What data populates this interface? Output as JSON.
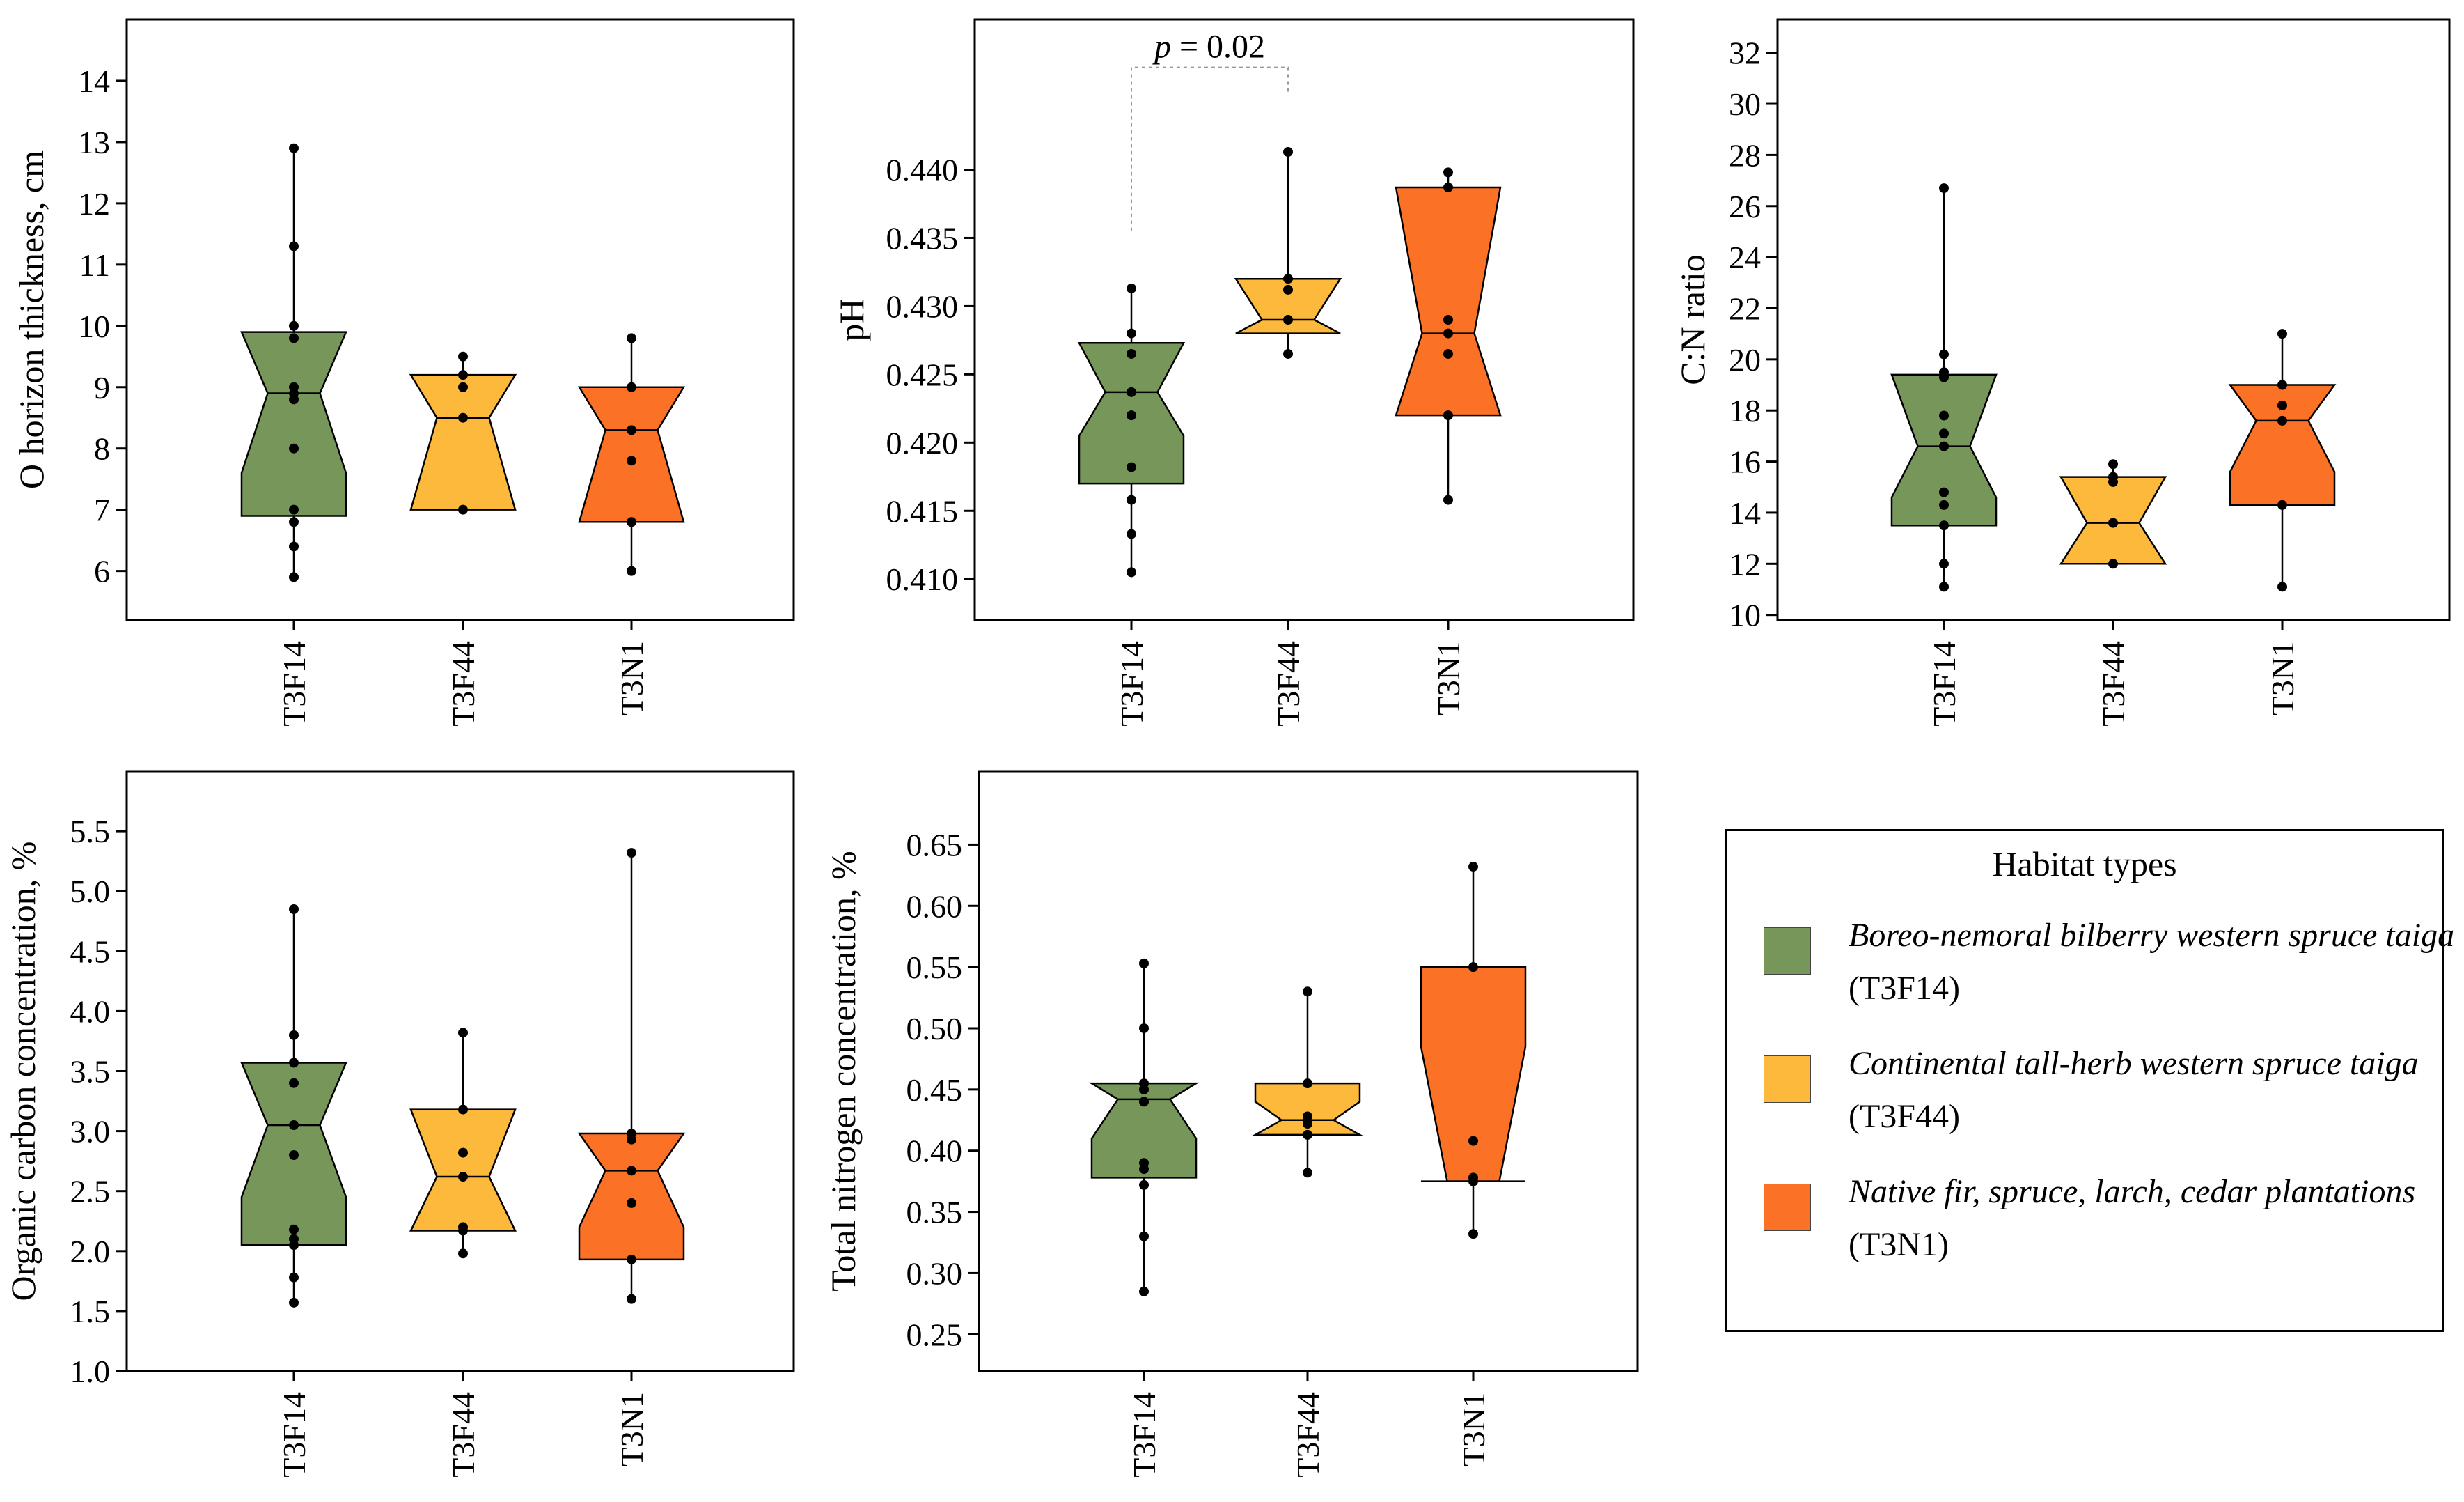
{
  "colors": {
    "T3F14": "#77975a",
    "T3F44": "#fdb93c",
    "T3N1": "#fb7226"
  },
  "legend": {
    "title": "Habitat types",
    "items": [
      {
        "code": "T3F14",
        "name": "Boreo-nemoral bilberry western spruce taiga",
        "code_label": "(T3F14)"
      },
      {
        "code": "T3F44",
        "name": "Continental tall-herb western spruce taiga",
        "code_label": "(T3F44)"
      },
      {
        "code": "T3N1",
        "name": "Native fir, spruce, larch, cedar plantations",
        "code_label": "(T3N1)"
      }
    ]
  },
  "chart_data": [
    {
      "id": "o-horizon",
      "type": "boxplot",
      "ylabel": "O horizon thickness, cm",
      "ylim": [
        5.2,
        15.0
      ],
      "yticks": [
        6,
        7,
        8,
        9,
        10,
        11,
        12,
        13,
        14
      ],
      "categories": [
        "T3F14",
        "T3F44",
        "T3N1"
      ],
      "boxes": [
        {
          "min": 5.9,
          "q1": 6.9,
          "median": 8.9,
          "q3": 9.9,
          "max": 12.9,
          "notch_lo": 7.6,
          "notch_hi": 9.9,
          "points": [
            5.9,
            6.4,
            6.8,
            7.0,
            8.0,
            8.8,
            8.9,
            9.0,
            9.8,
            10.0,
            11.3,
            12.9
          ]
        },
        {
          "min": 7.0,
          "q1": 7.0,
          "median": 8.5,
          "q3": 9.2,
          "max": 9.5,
          "notch_lo": 7.0,
          "notch_hi": 9.2,
          "points": [
            7.0,
            8.5,
            9.0,
            9.2,
            9.5
          ]
        },
        {
          "min": 6.0,
          "q1": 6.8,
          "median": 8.3,
          "q3": 9.0,
          "max": 9.8,
          "notch_lo": 6.8,
          "notch_hi": 9.0,
          "points": [
            6.0,
            6.8,
            7.8,
            8.3,
            9.0,
            9.8
          ]
        }
      ]
    },
    {
      "id": "ph",
      "type": "boxplot",
      "ylabel": "pH",
      "ylim": [
        0.407,
        0.451
      ],
      "yticks": [
        "0.410",
        "0.415",
        "0.420",
        "0.425",
        "0.430",
        "0.435",
        "0.440"
      ],
      "categories": [
        "T3F14",
        "T3F44",
        "T3N1"
      ],
      "annotation": {
        "text_italic": "p",
        "text_rest": " = 0.02",
        "between": [
          "T3F14",
          "T3F44"
        ],
        "top_value": 0.4475,
        "left_drop_to": 0.4355,
        "right_drop_to": 0.4455
      },
      "boxes": [
        {
          "min": 0.4105,
          "q1": 0.417,
          "median": 0.4237,
          "q3": 0.4273,
          "max": 0.4313,
          "notch_lo": 0.4205,
          "notch_hi": 0.4273,
          "points": [
            0.4105,
            0.4133,
            0.4158,
            0.4182,
            0.422,
            0.4237,
            0.4265,
            0.428,
            0.4313
          ]
        },
        {
          "min": 0.4265,
          "q1": 0.428,
          "median": 0.429,
          "q3": 0.432,
          "max": 0.4413,
          "notch_lo": 0.428,
          "notch_hi": 0.432,
          "points": [
            0.4265,
            0.429,
            0.4312,
            0.432,
            0.4413
          ]
        },
        {
          "min": 0.4158,
          "q1": 0.422,
          "median": 0.428,
          "q3": 0.4387,
          "max": 0.4398,
          "notch_lo": 0.422,
          "notch_hi": 0.4387,
          "points": [
            0.4158,
            0.422,
            0.4265,
            0.428,
            0.429,
            0.4387,
            0.4398
          ]
        }
      ]
    },
    {
      "id": "cn-ratio",
      "type": "boxplot",
      "ylabel": "C:N ratio",
      "ylim": [
        9.8,
        33.3
      ],
      "yticks": [
        10,
        12,
        14,
        16,
        18,
        20,
        22,
        24,
        26,
        28,
        30,
        32
      ],
      "categories": [
        "T3F14",
        "T3F44",
        "T3N1"
      ],
      "boxes": [
        {
          "min": 11.1,
          "q1": 13.5,
          "median": 16.6,
          "q3": 19.4,
          "max": 26.7,
          "notch_lo": 14.6,
          "notch_hi": 19.4,
          "points": [
            11.1,
            12.0,
            13.5,
            14.3,
            14.8,
            16.6,
            17.1,
            17.8,
            19.3,
            19.5,
            20.2,
            26.7
          ]
        },
        {
          "min": 12.0,
          "q1": 12.0,
          "median": 13.6,
          "q3": 15.4,
          "max": 15.9,
          "notch_lo": 12.0,
          "notch_hi": 15.4,
          "points": [
            12.0,
            13.6,
            15.2,
            15.4,
            15.9
          ]
        },
        {
          "min": 11.1,
          "q1": 14.3,
          "median": 17.6,
          "q3": 19.0,
          "max": 21.0,
          "notch_lo": 15.6,
          "notch_hi": 19.0,
          "points": [
            11.1,
            14.3,
            17.6,
            18.2,
            19.0,
            21.0
          ]
        }
      ]
    },
    {
      "id": "organic-carbon",
      "type": "boxplot",
      "ylabel": "Organic carbon concentration, %",
      "ylim": [
        1.0,
        6.0
      ],
      "yticks": [
        "1.0",
        "1.5",
        "2.0",
        "2.5",
        "3.0",
        "3.5",
        "4.0",
        "4.5",
        "5.0",
        "5.5"
      ],
      "categories": [
        "T3F14",
        "T3F44",
        "T3N1"
      ],
      "boxes": [
        {
          "min": 1.57,
          "q1": 2.05,
          "median": 3.05,
          "q3": 3.57,
          "max": 4.85,
          "notch_lo": 2.45,
          "notch_hi": 3.57,
          "points": [
            1.57,
            1.78,
            2.05,
            2.1,
            2.18,
            2.8,
            3.05,
            3.4,
            3.57,
            3.8,
            4.85
          ]
        },
        {
          "min": 1.98,
          "q1": 2.17,
          "median": 2.62,
          "q3": 3.18,
          "max": 3.82,
          "notch_lo": 2.17,
          "notch_hi": 3.18,
          "points": [
            1.98,
            2.17,
            2.2,
            2.62,
            2.82,
            3.18,
            3.82
          ]
        },
        {
          "min": 1.6,
          "q1": 1.93,
          "median": 2.67,
          "q3": 2.98,
          "max": 5.32,
          "notch_lo": 2.2,
          "notch_hi": 2.98,
          "points": [
            1.6,
            1.93,
            2.4,
            2.67,
            2.93,
            2.98,
            5.32
          ]
        }
      ]
    },
    {
      "id": "total-nitrogen",
      "type": "boxplot",
      "ylabel": "Total nitrogen concentration, %",
      "ylim": [
        0.22,
        0.71
      ],
      "yticks": [
        "0.25",
        "0.30",
        "0.35",
        "0.40",
        "0.45",
        "0.50",
        "0.55",
        "0.60",
        "0.65"
      ],
      "categories": [
        "T3F14",
        "T3F44",
        "T3N1"
      ],
      "boxes": [
        {
          "min": 0.285,
          "q1": 0.378,
          "median": 0.442,
          "q3": 0.455,
          "max": 0.553,
          "notch_lo": 0.41,
          "notch_hi": 0.455,
          "points": [
            0.285,
            0.33,
            0.372,
            0.385,
            0.39,
            0.44,
            0.45,
            0.455,
            0.5,
            0.553
          ]
        },
        {
          "min": 0.382,
          "q1": 0.413,
          "median": 0.425,
          "q3": 0.455,
          "max": 0.53,
          "notch_lo": 0.413,
          "notch_hi": 0.44,
          "points": [
            0.382,
            0.413,
            0.422,
            0.428,
            0.455,
            0.53
          ]
        },
        {
          "min": 0.332,
          "q1": 0.375,
          "median": 0.375,
          "q3": 0.55,
          "max": 0.632,
          "notch_lo": 0.375,
          "notch_hi": 0.485,
          "points": [
            0.332,
            0.375,
            0.378,
            0.408,
            0.55,
            0.632
          ]
        }
      ]
    }
  ]
}
